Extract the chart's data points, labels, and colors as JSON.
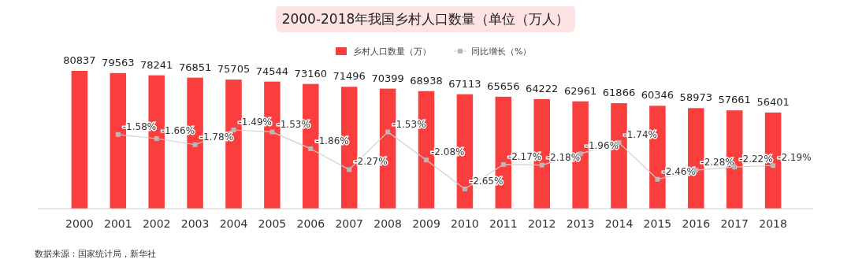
{
  "chart_data": {
    "type": "bar",
    "title": "2000-2018年我国乡村人口数量（单位（万人）",
    "categories": [
      "2000",
      "2001",
      "2002",
      "2003",
      "2004",
      "2005",
      "2006",
      "2007",
      "2008",
      "2009",
      "2010",
      "2011",
      "2012",
      "2013",
      "2014",
      "2015",
      "2016",
      "2017",
      "2018"
    ],
    "series": [
      {
        "name": "乡村人口数量（万）",
        "color": "#fa3e3e",
        "values": [
          80837,
          79563,
          78241,
          76851,
          75705,
          74544,
          73160,
          71496,
          70399,
          68938,
          67113,
          65656,
          64222,
          62961,
          61866,
          60346,
          58973,
          57661,
          56401
        ]
      },
      {
        "name": "同比增长（%）",
        "type": "line",
        "axis": "y2",
        "color": "#d0d0d0",
        "values": [
          null,
          -1.58,
          -1.66,
          -1.78,
          -1.49,
          -1.53,
          -1.86,
          -2.27,
          -1.53,
          -2.08,
          -2.65,
          -2.17,
          -2.18,
          -1.96,
          -1.74,
          -2.46,
          -2.28,
          -2.22,
          -2.19
        ],
        "value_labels": [
          null,
          "-1.58%",
          "-1.66%",
          "-1.78%",
          "-1.49%",
          "-1.53%",
          "-1.86%",
          "-2.27%",
          "-1.53%",
          "-2.08%",
          "-2.65%",
          "-2.17%",
          "-2.18%",
          "-1.96%",
          "-1.74%",
          "-2.46%",
          "-2.28%",
          "-2.22%",
          "-2.19%"
        ]
      }
    ],
    "data_labels": true,
    "legend": "top",
    "marker": "square",
    "line_style": "solid",
    "annotations": [
      "数据来源：国家统计局，新华社"
    ]
  }
}
